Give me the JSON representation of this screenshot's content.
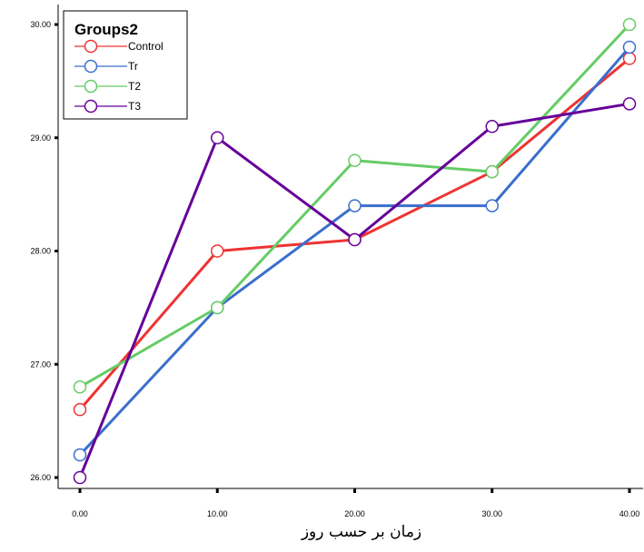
{
  "chart_data": {
    "type": "line",
    "title": "",
    "xlabel": "زمان بر حسب روز",
    "ylabel": "",
    "x": [
      0,
      10,
      20,
      30,
      40
    ],
    "x_tick_labels": [
      "0.00",
      "10.00",
      "20.00",
      "30.00",
      "40.00"
    ],
    "y_tick_values": [
      26,
      27,
      28,
      29,
      30
    ],
    "y_tick_labels": [
      "26.00",
      "27.00",
      "28.00",
      "29.00",
      "30.00"
    ],
    "xlim": [
      0,
      40
    ],
    "ylim": [
      26,
      30
    ],
    "grid": false,
    "legend": {
      "title": "Groups2",
      "placement": "top-left"
    },
    "series": [
      {
        "name": "Control",
        "color": "#ee3333",
        "values": [
          26.6,
          28.0,
          28.1,
          28.7,
          29.7
        ]
      },
      {
        "name": "Tr",
        "color": "#3a6fcc",
        "values": [
          26.2,
          27.5,
          28.4,
          28.4,
          29.8
        ]
      },
      {
        "name": "T2",
        "color": "#66cc66",
        "values": [
          26.8,
          27.5,
          28.8,
          28.7,
          30.0
        ]
      },
      {
        "name": "T3",
        "color": "#660099",
        "values": [
          26.0,
          29.0,
          28.1,
          29.1,
          29.3
        ]
      }
    ]
  }
}
